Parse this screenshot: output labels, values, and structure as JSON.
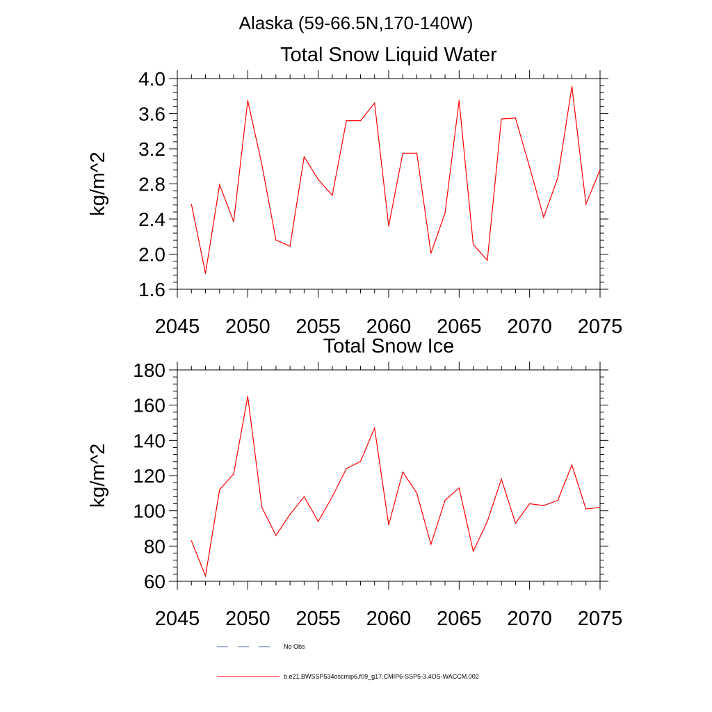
{
  "figure": {
    "suptitle": "Alaska (59-66.5N,170-140W)"
  },
  "chart_data": [
    {
      "type": "line",
      "title": "Total Snow Liquid Water",
      "xlabel": "",
      "ylabel": "kg/m^2",
      "xlim": [
        2045,
        2075
      ],
      "ylim": [
        1.6,
        4.0
      ],
      "xticks": [
        "2045",
        "2050",
        "2055",
        "2060",
        "2065",
        "2070",
        "2075"
      ],
      "yticks": [
        "1.6",
        "2.0",
        "2.4",
        "2.8",
        "3.2",
        "3.6",
        "4.0"
      ],
      "x": [
        2046,
        2047,
        2048,
        2049,
        2050,
        2051,
        2052,
        2053,
        2054,
        2055,
        2056,
        2057,
        2058,
        2059,
        2060,
        2061,
        2062,
        2063,
        2064,
        2065,
        2066,
        2067,
        2068,
        2069,
        2070,
        2071,
        2072,
        2073,
        2074,
        2075
      ],
      "series": [
        {
          "name": "b.e21.BWSSP534oscmip6.f09_g17.CMIP6-SSP5-3.4OS-WACCM.002",
          "color": "#ff0000",
          "values": [
            2.57,
            1.78,
            2.79,
            2.37,
            3.75,
            3.02,
            2.16,
            2.09,
            3.11,
            2.85,
            2.67,
            3.52,
            3.52,
            3.72,
            2.32,
            3.15,
            3.15,
            2.01,
            2.47,
            3.75,
            2.11,
            1.93,
            3.54,
            3.55,
            2.99,
            2.42,
            2.87,
            3.91,
            2.57,
            2.96
          ]
        }
      ],
      "grid": false
    },
    {
      "type": "line",
      "title": "Total Snow Ice",
      "xlabel": "",
      "ylabel": "kg/m^2",
      "xlim": [
        2045,
        2075
      ],
      "ylim": [
        60,
        180
      ],
      "xticks": [
        "2045",
        "2050",
        "2055",
        "2060",
        "2065",
        "2070",
        "2075"
      ],
      "yticks": [
        "60",
        "80",
        "100",
        "120",
        "140",
        "160",
        "180"
      ],
      "x": [
        2046,
        2047,
        2048,
        2049,
        2050,
        2051,
        2052,
        2053,
        2054,
        2055,
        2056,
        2057,
        2058,
        2059,
        2060,
        2061,
        2062,
        2063,
        2064,
        2065,
        2066,
        2067,
        2068,
        2069,
        2070,
        2071,
        2072,
        2073,
        2074,
        2075
      ],
      "series": [
        {
          "name": "b.e21.BWSSP534oscmip6.f09_g17.CMIP6-SSP5-3.4OS-WACCM.002",
          "color": "#ff0000",
          "values": [
            83,
            63,
            112,
            121,
            165,
            102,
            86,
            98,
            108,
            94,
            108,
            124,
            128,
            147,
            92,
            122,
            110,
            81,
            106,
            113,
            77,
            94,
            118,
            93,
            104,
            103,
            106,
            126,
            101,
            102
          ]
        }
      ],
      "grid": false
    }
  ],
  "legend": {
    "placement": "bottom",
    "items": [
      {
        "label": "No Obs",
        "color": "#4466aa",
        "style": "dashed"
      },
      {
        "label": "b.e21.BWSSP534oscmip6.f09_g17.CMIP6-SSP5-3.4OS-WACCM.002",
        "color": "#ff0000",
        "style": "solid"
      }
    ]
  }
}
